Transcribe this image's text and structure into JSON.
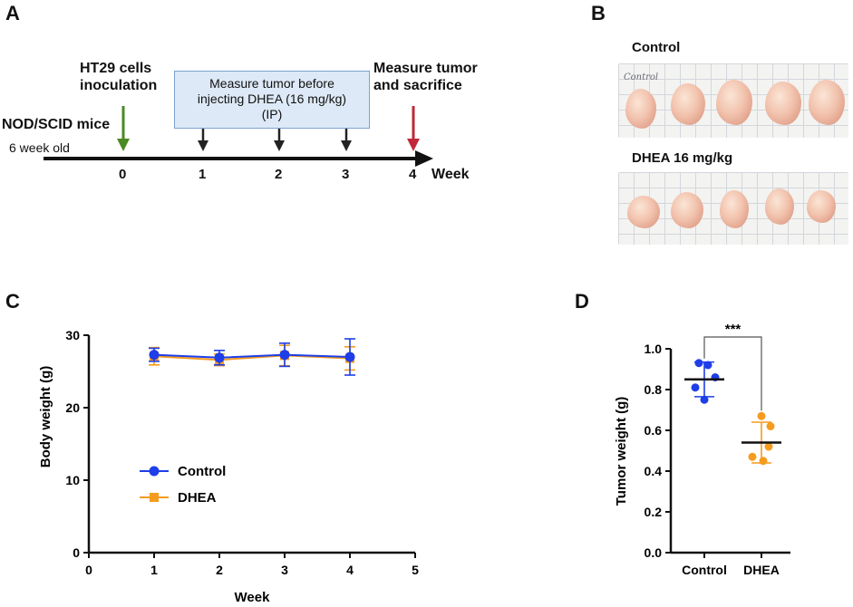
{
  "panels": {
    "a": "A",
    "b": "B",
    "c": "C",
    "d": "D"
  },
  "timeline": {
    "mice_label": "NOD/SCID mice",
    "age_label": "6 week old",
    "inoculation_label_line1": "HT29 cells",
    "inoculation_label_line2": "inoculation",
    "measure_box_line1": "Measure tumor before",
    "measure_box_line2": "injecting DHEA (16 mg/kg)",
    "measure_box_line3": "(IP)",
    "sacrifice_label_line1": "Measure tumor",
    "sacrifice_label_line2": "and sacrifice",
    "axis_label": "Week",
    "weeks": [
      "0",
      "1",
      "2",
      "3",
      "4"
    ],
    "colors": {
      "inoculation_arrow": "#4a8a24",
      "measure_arrow": "#222222",
      "sacrifice_arrow": "#c0283a",
      "box_fill": "#dde9f6"
    }
  },
  "photos": {
    "control_title": "Control",
    "dhea_title": "DHEA 16 mg/kg",
    "control_sheet_text": "Control"
  },
  "chart_data": [
    {
      "type": "line",
      "panel": "C",
      "xlabel": "Week",
      "ylabel": "Body weight (g)",
      "xlim": [
        0,
        5
      ],
      "ylim": [
        0,
        30
      ],
      "xticks": [
        "0",
        "1",
        "2",
        "3",
        "4",
        "5"
      ],
      "yticks": [
        "0",
        "10",
        "20",
        "30"
      ],
      "x": [
        1,
        2,
        3,
        4
      ],
      "legend_position": "center-left",
      "series": [
        {
          "name": "Control",
          "color": "#1e3ee8",
          "marker": "circle",
          "values": [
            27.3,
            26.9,
            27.3,
            27.0
          ],
          "errors": [
            0.9,
            1.0,
            1.6,
            2.5
          ]
        },
        {
          "name": "DHEA",
          "color": "#f59b1e",
          "marker": "square",
          "values": [
            27.1,
            26.6,
            27.2,
            26.8
          ],
          "errors": [
            1.2,
            0.8,
            1.4,
            1.6
          ]
        }
      ]
    },
    {
      "type": "scatter",
      "panel": "D",
      "ylabel": "Tumor weight (g)",
      "ylim": [
        0,
        1.0
      ],
      "yticks": [
        "0.0",
        "0.2",
        "0.4",
        "0.6",
        "0.8",
        "1.0"
      ],
      "categories": [
        "Control",
        "DHEA"
      ],
      "significance": "***",
      "groups": [
        {
          "name": "Control",
          "color": "#1e3ee8",
          "mean": 0.85,
          "sd": 0.085,
          "points": [
            0.93,
            0.92,
            0.86,
            0.81,
            0.75
          ]
        },
        {
          "name": "DHEA",
          "color": "#f59b1e",
          "mean": 0.54,
          "sd": 0.1,
          "points": [
            0.67,
            0.62,
            0.52,
            0.47,
            0.45
          ]
        }
      ]
    }
  ]
}
